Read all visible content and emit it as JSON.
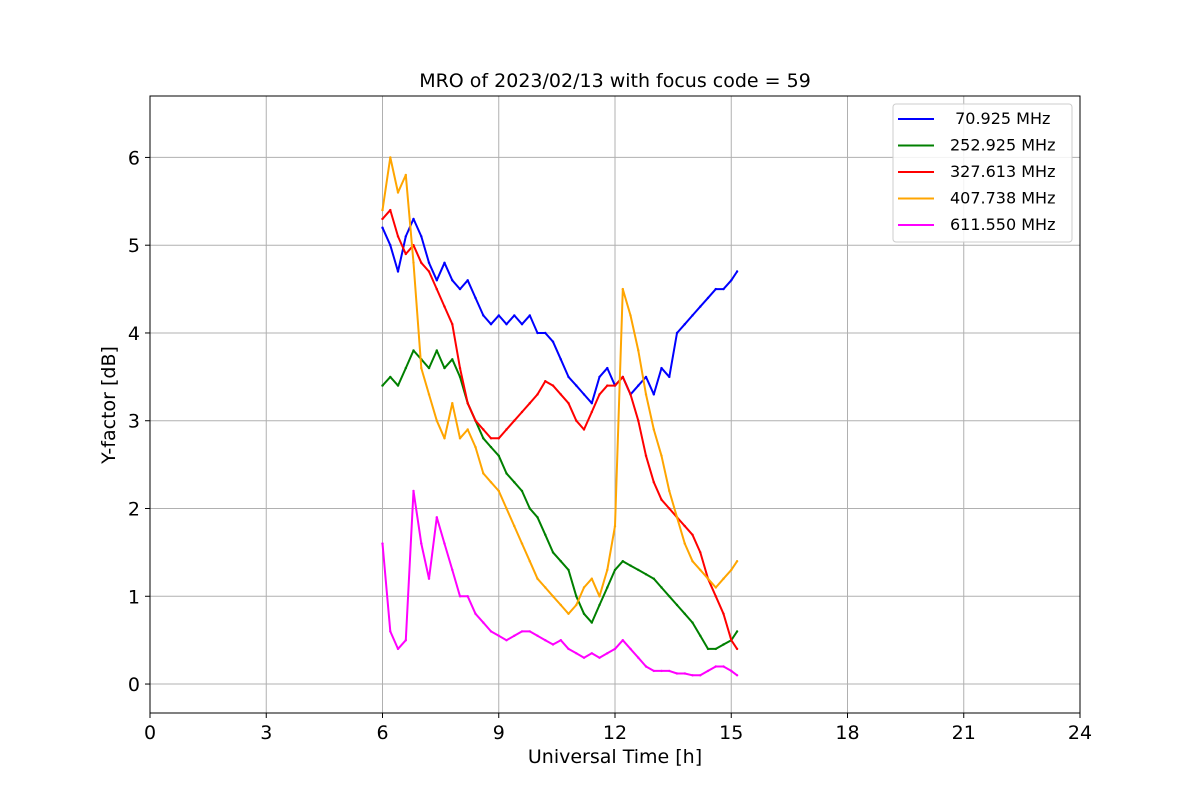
{
  "chart_data": {
    "type": "line",
    "title": "MRO of 2023/02/13 with focus code = 59",
    "xlabel": "Universal Time [h]",
    "ylabel": "Y-factor [dB]",
    "xlim": [
      0,
      24
    ],
    "ylim": [
      -0.33,
      6.7
    ],
    "xticks": [
      0,
      3,
      6,
      9,
      12,
      15,
      18,
      21,
      24
    ],
    "yticks": [
      0,
      1,
      2,
      3,
      4,
      5,
      6
    ],
    "grid": true,
    "legend_position": "top-right",
    "series": [
      {
        "name": " 70.925 MHz",
        "color": "#0000ff",
        "x": [
          6.0,
          6.2,
          6.4,
          6.6,
          6.8,
          7.0,
          7.2,
          7.4,
          7.6,
          7.8,
          8.0,
          8.2,
          8.4,
          8.6,
          8.8,
          9.0,
          9.2,
          9.4,
          9.6,
          9.8,
          10.0,
          10.2,
          10.4,
          10.6,
          10.8,
          11.0,
          11.2,
          11.4,
          11.6,
          11.8,
          12.0,
          12.2,
          12.4,
          12.6,
          12.8,
          13.0,
          13.2,
          13.4,
          13.6,
          13.8,
          14.0,
          14.2,
          14.4,
          14.6,
          14.8,
          15.0,
          15.15
        ],
        "y": [
          5.2,
          5.0,
          4.7,
          5.1,
          5.3,
          5.1,
          4.8,
          4.6,
          4.8,
          4.6,
          4.5,
          4.6,
          4.4,
          4.2,
          4.1,
          4.2,
          4.1,
          4.2,
          4.1,
          4.2,
          4.0,
          4.0,
          3.9,
          3.7,
          3.5,
          3.4,
          3.3,
          3.2,
          3.5,
          3.6,
          3.4,
          3.5,
          3.3,
          3.4,
          3.5,
          3.3,
          3.6,
          3.5,
          4.0,
          4.1,
          4.2,
          4.3,
          4.4,
          4.5,
          4.5,
          4.6,
          4.7
        ]
      },
      {
        "name": "252.925 MHz",
        "color": "#008000",
        "x": [
          6.0,
          6.2,
          6.4,
          6.6,
          6.8,
          7.0,
          7.2,
          7.4,
          7.6,
          7.8,
          8.0,
          8.2,
          8.4,
          8.6,
          8.8,
          9.0,
          9.2,
          9.4,
          9.6,
          9.8,
          10.0,
          10.2,
          10.4,
          10.6,
          10.8,
          11.0,
          11.2,
          11.4,
          11.6,
          11.8,
          12.0,
          12.2,
          12.4,
          12.6,
          12.8,
          13.0,
          13.2,
          13.4,
          13.6,
          13.8,
          14.0,
          14.2,
          14.4,
          14.6,
          14.8,
          15.0,
          15.15
        ],
        "y": [
          3.4,
          3.5,
          3.4,
          3.6,
          3.8,
          3.7,
          3.6,
          3.8,
          3.6,
          3.7,
          3.5,
          3.2,
          3.0,
          2.8,
          2.7,
          2.6,
          2.4,
          2.3,
          2.2,
          2.0,
          1.9,
          1.7,
          1.5,
          1.4,
          1.3,
          1.0,
          0.8,
          0.7,
          0.9,
          1.1,
          1.3,
          1.4,
          1.35,
          1.3,
          1.25,
          1.2,
          1.1,
          1.0,
          0.9,
          0.8,
          0.7,
          0.55,
          0.4,
          0.4,
          0.45,
          0.5,
          0.6
        ]
      },
      {
        "name": "327.613 MHz",
        "color": "#ff0000",
        "x": [
          6.0,
          6.2,
          6.4,
          6.6,
          6.8,
          7.0,
          7.2,
          7.4,
          7.6,
          7.8,
          8.0,
          8.2,
          8.4,
          8.6,
          8.8,
          9.0,
          9.2,
          9.4,
          9.6,
          9.8,
          10.0,
          10.2,
          10.4,
          10.6,
          10.8,
          11.0,
          11.2,
          11.4,
          11.6,
          11.8,
          12.0,
          12.2,
          12.4,
          12.6,
          12.8,
          13.0,
          13.2,
          13.4,
          13.6,
          13.8,
          14.0,
          14.2,
          14.4,
          14.6,
          14.8,
          15.0,
          15.15
        ],
        "y": [
          5.3,
          5.4,
          5.1,
          4.9,
          5.0,
          4.8,
          4.7,
          4.5,
          4.3,
          4.1,
          3.6,
          3.2,
          3.0,
          2.9,
          2.8,
          2.8,
          2.9,
          3.0,
          3.1,
          3.2,
          3.3,
          3.45,
          3.4,
          3.3,
          3.2,
          3.0,
          2.9,
          3.1,
          3.3,
          3.4,
          3.4,
          3.5,
          3.3,
          3.0,
          2.6,
          2.3,
          2.1,
          2.0,
          1.9,
          1.8,
          1.7,
          1.5,
          1.2,
          1.0,
          0.8,
          0.5,
          0.4
        ]
      },
      {
        "name": "407.738 MHz",
        "color": "#ffa500",
        "x": [
          6.0,
          6.2,
          6.4,
          6.6,
          6.8,
          7.0,
          7.2,
          7.4,
          7.6,
          7.8,
          8.0,
          8.2,
          8.4,
          8.6,
          8.8,
          9.0,
          9.2,
          9.4,
          9.6,
          9.8,
          10.0,
          10.2,
          10.4,
          10.6,
          10.8,
          11.0,
          11.2,
          11.4,
          11.6,
          11.8,
          12.0,
          12.2,
          12.4,
          12.6,
          12.8,
          13.0,
          13.2,
          13.4,
          13.6,
          13.8,
          14.0,
          14.2,
          14.4,
          14.6,
          14.8,
          15.0,
          15.15
        ],
        "y": [
          5.4,
          6.0,
          5.6,
          5.8,
          4.8,
          3.6,
          3.3,
          3.0,
          2.8,
          3.2,
          2.8,
          2.9,
          2.7,
          2.4,
          2.3,
          2.2,
          2.0,
          1.8,
          1.6,
          1.4,
          1.2,
          1.1,
          1.0,
          0.9,
          0.8,
          0.9,
          1.1,
          1.2,
          1.0,
          1.3,
          1.8,
          4.5,
          4.2,
          3.8,
          3.3,
          2.9,
          2.6,
          2.2,
          1.9,
          1.6,
          1.4,
          1.3,
          1.2,
          1.1,
          1.2,
          1.3,
          1.4
        ]
      },
      {
        "name": "611.550 MHz",
        "color": "#ff00ff",
        "x": [
          6.0,
          6.2,
          6.4,
          6.6,
          6.8,
          7.0,
          7.2,
          7.4,
          7.6,
          7.8,
          8.0,
          8.2,
          8.4,
          8.6,
          8.8,
          9.0,
          9.2,
          9.4,
          9.6,
          9.8,
          10.0,
          10.2,
          10.4,
          10.6,
          10.8,
          11.0,
          11.2,
          11.4,
          11.6,
          11.8,
          12.0,
          12.2,
          12.4,
          12.6,
          12.8,
          13.0,
          13.2,
          13.4,
          13.6,
          13.8,
          14.0,
          14.2,
          14.4,
          14.6,
          14.8,
          15.0,
          15.15
        ],
        "y": [
          1.6,
          0.6,
          0.4,
          0.5,
          2.2,
          1.6,
          1.2,
          1.9,
          1.6,
          1.3,
          1.0,
          1.0,
          0.8,
          0.7,
          0.6,
          0.55,
          0.5,
          0.55,
          0.6,
          0.6,
          0.55,
          0.5,
          0.45,
          0.5,
          0.4,
          0.35,
          0.3,
          0.35,
          0.3,
          0.35,
          0.4,
          0.5,
          0.4,
          0.3,
          0.2,
          0.15,
          0.15,
          0.15,
          0.12,
          0.12,
          0.1,
          0.1,
          0.15,
          0.2,
          0.2,
          0.15,
          0.1
        ]
      }
    ]
  }
}
